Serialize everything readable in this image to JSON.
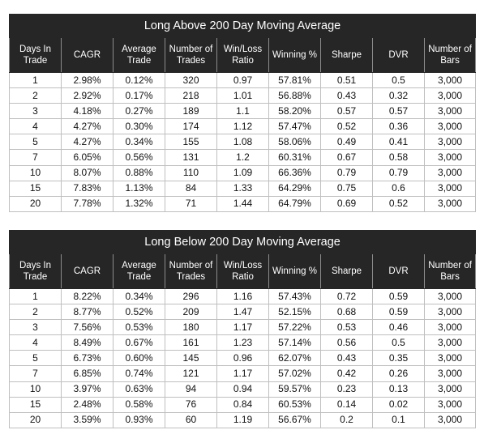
{
  "columns": [
    "Days In Trade",
    "CAGR",
    "Average Trade",
    "Number of Trades",
    "Win/Loss Ratio",
    "Winning %",
    "Sharpe",
    "DVR",
    "Number of Bars"
  ],
  "tables": [
    {
      "title": "Long Above 200 Day Moving Average",
      "rows": [
        [
          "1",
          "2.98%",
          "0.12%",
          "320",
          "0.97",
          "57.81%",
          "0.51",
          "0.5",
          "3,000"
        ],
        [
          "2",
          "2.92%",
          "0.17%",
          "218",
          "1.01",
          "56.88%",
          "0.43",
          "0.32",
          "3,000"
        ],
        [
          "3",
          "4.18%",
          "0.27%",
          "189",
          "1.1",
          "58.20%",
          "0.57",
          "0.57",
          "3,000"
        ],
        [
          "4",
          "4.27%",
          "0.30%",
          "174",
          "1.12",
          "57.47%",
          "0.52",
          "0.36",
          "3,000"
        ],
        [
          "5",
          "4.27%",
          "0.34%",
          "155",
          "1.08",
          "58.06%",
          "0.49",
          "0.41",
          "3,000"
        ],
        [
          "7",
          "6.05%",
          "0.56%",
          "131",
          "1.2",
          "60.31%",
          "0.67",
          "0.58",
          "3,000"
        ],
        [
          "10",
          "8.07%",
          "0.88%",
          "110",
          "1.09",
          "66.36%",
          "0.79",
          "0.79",
          "3,000"
        ],
        [
          "15",
          "7.83%",
          "1.13%",
          "84",
          "1.33",
          "64.29%",
          "0.75",
          "0.6",
          "3,000"
        ],
        [
          "20",
          "7.78%",
          "1.32%",
          "71",
          "1.44",
          "64.79%",
          "0.69",
          "0.52",
          "3,000"
        ]
      ]
    },
    {
      "title": "Long Below 200 Day Moving Average",
      "rows": [
        [
          "1",
          "8.22%",
          "0.34%",
          "296",
          "1.16",
          "57.43%",
          "0.72",
          "0.59",
          "3,000"
        ],
        [
          "2",
          "8.77%",
          "0.52%",
          "209",
          "1.47",
          "52.15%",
          "0.68",
          "0.59",
          "3,000"
        ],
        [
          "3",
          "7.56%",
          "0.53%",
          "180",
          "1.17",
          "57.22%",
          "0.53",
          "0.46",
          "3,000"
        ],
        [
          "4",
          "8.49%",
          "0.67%",
          "161",
          "1.23",
          "57.14%",
          "0.56",
          "0.5",
          "3,000"
        ],
        [
          "5",
          "6.73%",
          "0.60%",
          "145",
          "0.96",
          "62.07%",
          "0.43",
          "0.35",
          "3,000"
        ],
        [
          "7",
          "6.85%",
          "0.74%",
          "121",
          "1.17",
          "57.02%",
          "0.42",
          "0.26",
          "3,000"
        ],
        [
          "10",
          "3.97%",
          "0.63%",
          "94",
          "0.94",
          "59.57%",
          "0.23",
          "0.13",
          "3,000"
        ],
        [
          "15",
          "2.48%",
          "0.58%",
          "76",
          "0.84",
          "60.53%",
          "0.14",
          "0.02",
          "3,000"
        ],
        [
          "20",
          "3.59%",
          "0.93%",
          "60",
          "1.19",
          "56.67%",
          "0.2",
          "0.1",
          "3,000"
        ]
      ]
    }
  ]
}
